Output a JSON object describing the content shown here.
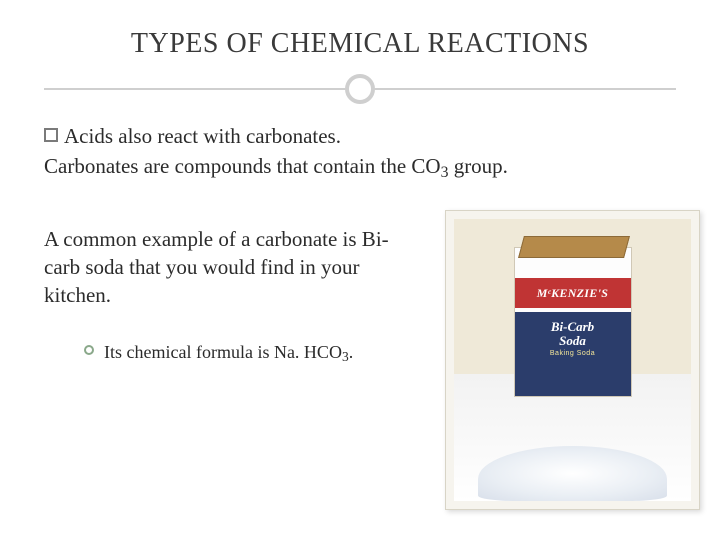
{
  "title": "TYPES OF CHEMICAL REACTIONS",
  "line1": "Acids also react with carbonates.",
  "line2_pre": "Carbonates are compounds that contain the CO",
  "line2_sub": "3",
  "line2_post": " group.",
  "para3": "A common example of a carbonate is Bi-carb soda that you would find in your kitchen.",
  "sub_pre": "Its chemical formula is Na. HCO",
  "sub_sub": "3",
  "sub_post": ".",
  "brand": "MᶜKENZIE'S",
  "product_line1": "Bi-Carb",
  "product_line2": "Soda",
  "product_sub": "Baking Soda",
  "colors": {
    "divider": "#cfcfcf",
    "bullet_border": "#7a7a7a",
    "circ_border": "#8aa88a",
    "brand_red": "#c03434",
    "box_blue": "#2b3d6b"
  }
}
